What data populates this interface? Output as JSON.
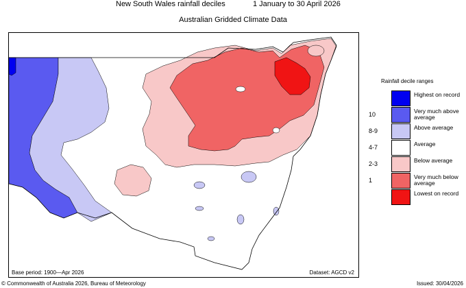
{
  "header": {
    "title": "New South Wales rainfall deciles",
    "period": "1 January to 30 April 2026",
    "subtitle": "Australian Gridded Climate Data"
  },
  "footer": {
    "base_period": "Base period: 1900—Apr 2026",
    "dataset": "Dataset: AGCD v2",
    "copyright": "© Commonwealth of Australia 2026, Bureau of Meteorology",
    "issued": "Issued: 30/04/2026"
  },
  "legend": {
    "title": "Rainfall decile ranges",
    "items": [
      {
        "code": "",
        "label": "Highest on record",
        "color": "#0000f0"
      },
      {
        "code": "10",
        "label": "Very much above average",
        "color": "#5a5af0"
      },
      {
        "code": "8-9",
        "label": "Above average",
        "color": "#c8c8f5"
      },
      {
        "code": "4-7",
        "label": "Average",
        "color": "#ffffff"
      },
      {
        "code": "2-3",
        "label": "Below average",
        "color": "#f8c8c8"
      },
      {
        "code": "1",
        "label": "Very much below average",
        "color": "#f06464"
      },
      {
        "code": "",
        "label": "Lowest on record",
        "color": "#f01414"
      }
    ]
  },
  "colors": {
    "highest": "#0000f0",
    "very_much_above": "#5a5af0",
    "above": "#c8c8f5",
    "average": "#ffffff",
    "below": "#f8c8c8",
    "very_much_below": "#f06464",
    "lowest": "#f01414",
    "outline": "#000000"
  }
}
